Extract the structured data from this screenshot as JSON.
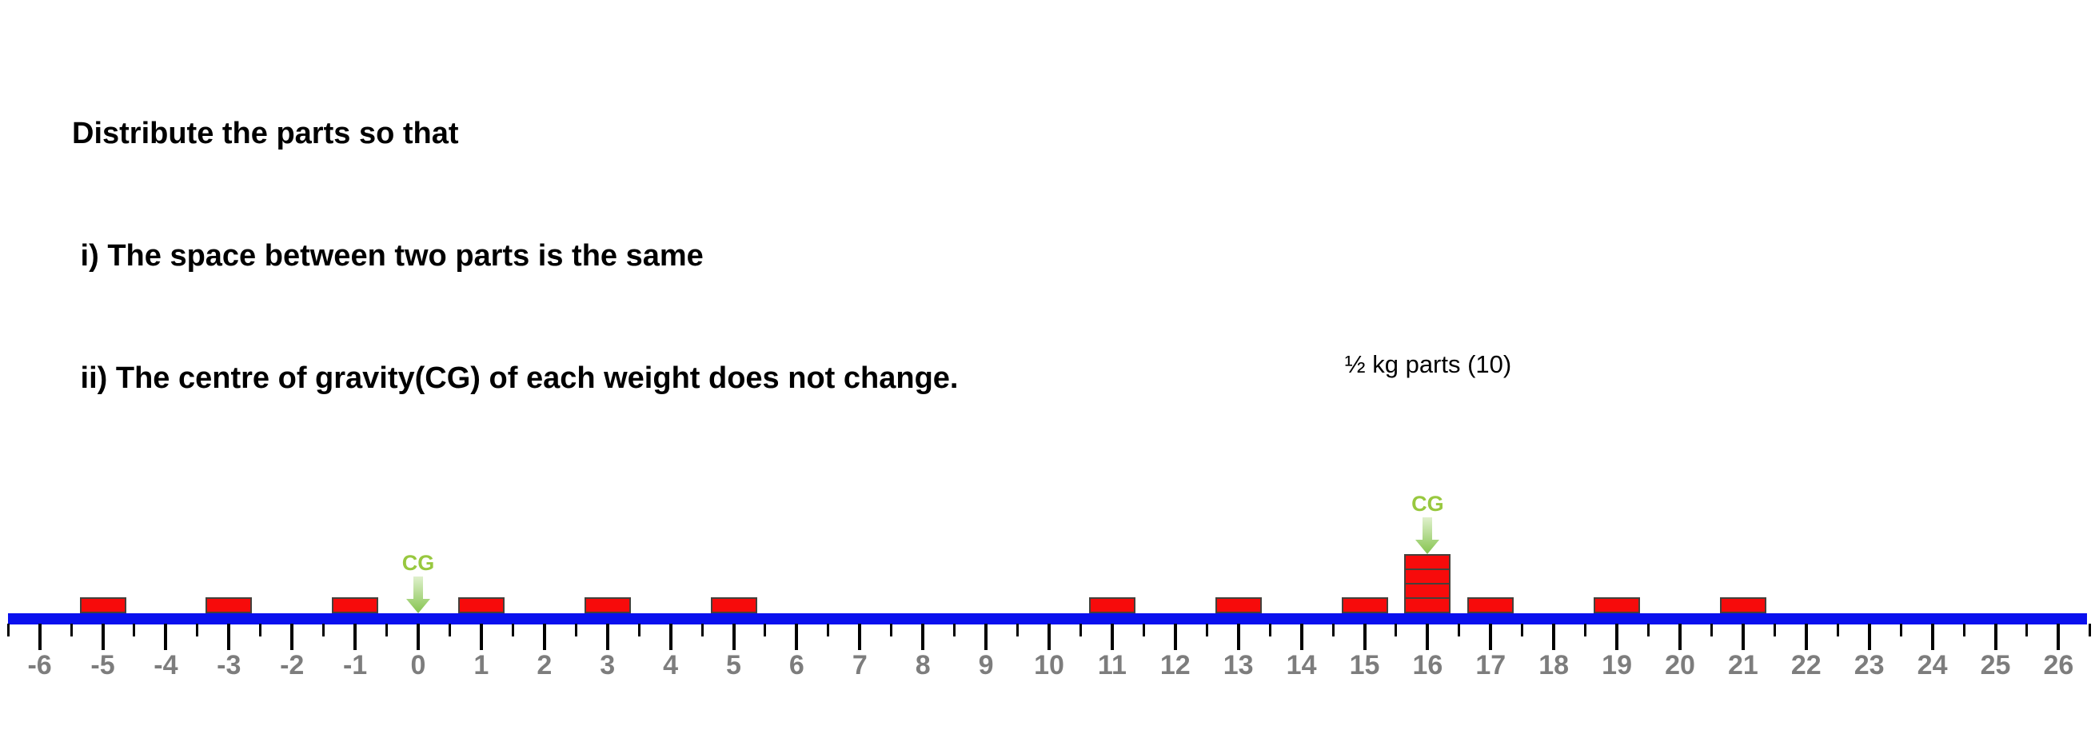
{
  "instructions": {
    "line1": "Distribute the parts so that",
    "line2": " i) The space between two parts is the same",
    "line3": " ii) The centre of gravity(CG) of each weight does not change."
  },
  "annotation": {
    "right_weight_label": "½ kg parts (10)",
    "cg_label": "CG"
  },
  "colors": {
    "bar": "#0a10ee",
    "block_fill": "#f70b0b",
    "block_border": "#45403b",
    "tick": "#000000",
    "number": "#7d7d7d",
    "cg_text": "#98c83f",
    "arrow_top": "#dff0cc",
    "arrow_tip": "#85c44f"
  },
  "ruler": {
    "min": -6,
    "max": 26,
    "minor_step": 0.5,
    "number_labels": [
      "-6",
      "-5",
      "-4",
      "-3",
      "-2",
      "-1",
      "0",
      "1",
      "2",
      "3",
      "4",
      "5",
      "6",
      "7",
      "8",
      "9",
      "10",
      "11",
      "12",
      "13",
      "14",
      "15",
      "16",
      "17",
      "18",
      "19",
      "20",
      "21",
      "22",
      "23",
      "24",
      "25",
      "26"
    ]
  },
  "weights": [
    {
      "name": "left-weight",
      "cg": 0,
      "part_positions": [
        -5,
        -3,
        -1,
        1,
        3,
        5
      ]
    },
    {
      "name": "right-weight",
      "cg": 16,
      "part_positions": [
        11,
        13,
        15,
        16,
        16,
        16,
        16,
        17,
        19,
        21
      ],
      "label": "½ kg parts (10)"
    }
  ],
  "chart_data": {
    "type": "number-line-weights",
    "axis": {
      "min": -6,
      "max": 26,
      "tick_step": 1,
      "minor_tick_step": 0.5
    },
    "weights": [
      {
        "cg": 0,
        "part_mass_kg": 0.5,
        "part_count": 6,
        "part_positions": [
          -5,
          -3,
          -1,
          1,
          3,
          5
        ]
      },
      {
        "cg": 16,
        "part_mass_kg": 0.5,
        "part_count": 10,
        "part_positions": [
          11,
          13,
          15,
          16,
          16,
          16,
          16,
          17,
          19,
          21
        ],
        "label": "½ kg parts (10)"
      }
    ]
  }
}
